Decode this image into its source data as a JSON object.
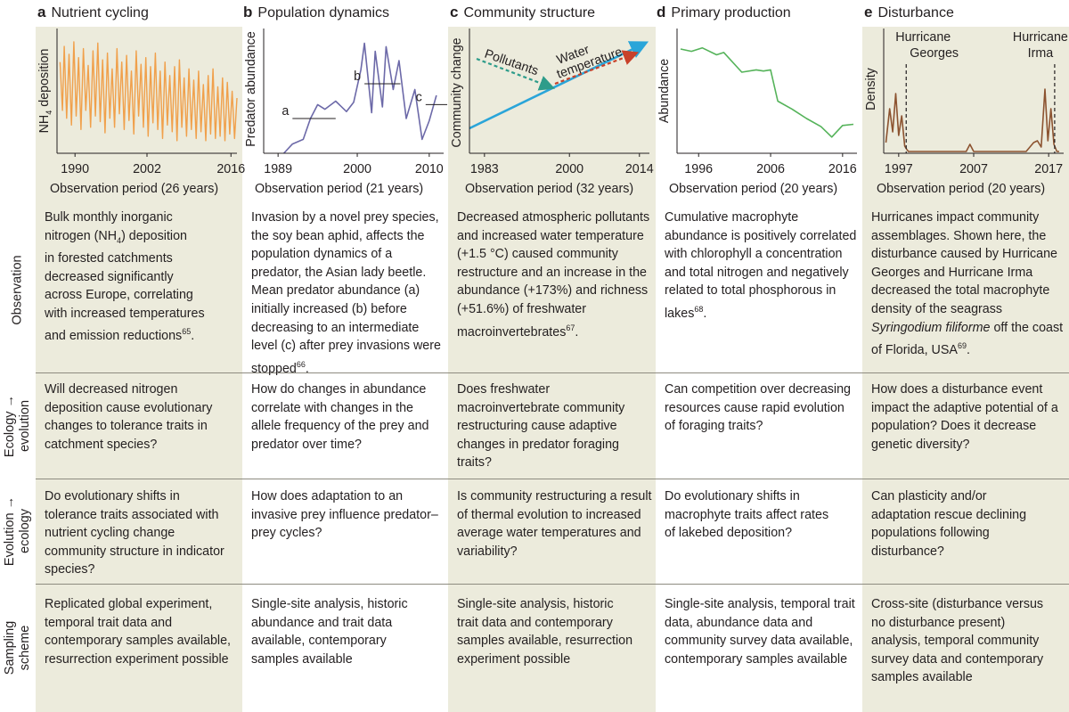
{
  "colors": {
    "shade": "#ecebdc",
    "orange": "#f0a04b",
    "purple": "#6c69a8",
    "blue": "#2aa5d9",
    "teal": "#2e9c8a",
    "red": "#c8412a",
    "green": "#55b35a",
    "brown": "#8c5330"
  },
  "panels": [
    {
      "letter": "a",
      "title": "Nutrient cycling",
      "xlabel": "Observation period (26 years)",
      "observation": [
        "Bulk monthly inorganic",
        "nitrogen (NH",
        "4",
        ") deposition",
        "in forested catchments",
        "decreased significantly",
        "across Europe, correlating",
        "with increased temperatures",
        "and emission reductions",
        "65",
        "."
      ],
      "eco_evo": "Will decreased nitrogen deposition cause evolutionary changes to tolerance traits in catchment species?",
      "evo_eco": "Do evolutionary shifts in tolerance traits associated with nutrient cycling change community structure in indicator species?",
      "sampling": "Replicated global experiment, temporal trait data and contemporary samples available, resurrection experiment possible"
    },
    {
      "letter": "b",
      "title": "Population dynamics",
      "xlabel": "Observation period (21 years)",
      "observation": "Invasion by a novel prey species, the soy bean aphid, affects the population dynamics of a predator, the Asian lady beetle. Mean predator abundance (a) initially increased (b) before decreasing to an intermediate level (c) after prey invasions were stopped",
      "observation_ref": "66",
      "eco_evo": "How do changes in abundance correlate with changes in the allele frequency of the prey and predator over time?",
      "evo_eco": "How does adaptation to an invasive prey influence predator–prey cycles?",
      "sampling": "Single-site analysis, historic abundance and trait data available, contemporary samples available"
    },
    {
      "letter": "c",
      "title": "Community structure",
      "xlabel": "Observation period (32 years)",
      "observation": "Decreased atmospheric pollutants and increased water temperature (+1.5 °C) caused community restructure and an increase in the abundance (+173%) and richness (+51.6%) of freshwater macroinvertebrates",
      "observation_ref": "67",
      "eco_evo": "Does freshwater macroinvertebrate community restructuring cause adaptive changes in predator foraging traits?",
      "evo_eco": "Is community restructuring a result of thermal evolution to increased average water temperatures and variability?",
      "sampling": "Single-site analysis, historic trait data and contemporary samples available, resurrection experiment possible"
    },
    {
      "letter": "d",
      "title": "Primary production",
      "xlabel": "Observation period (20 years)",
      "observation": "Cumulative macrophyte abundance is positively correlated with chlorophyll a concentration and total nitrogen and negatively related to total phosphorous in lakes",
      "observation_ref": "68",
      "eco_evo": "Can competition over decreasing resources cause rapid evolution of foraging traits?",
      "evo_eco": "Do evolutionary shifts in macrophyte traits affect rates of lakebed deposition?",
      "sampling": "Single-site analysis, temporal trait data, abundance data and community survey data available, contemporary samples available"
    },
    {
      "letter": "e",
      "title": "Disturbance",
      "xlabel": "Observation period (20 years)",
      "observation_pre": "Hurricanes impact community assemblages. Shown here, the disturbance caused by Hurricane Georges and Hurricane Irma decreased the total macrophyte density of the seagrass",
      "observation_species": "Syringodium filiforme",
      "observation_post": "off the coast of Florida, USA",
      "observation_ref": "69",
      "eco_evo": "How does a disturbance event impact the adaptive potential of a population? Does it decrease genetic diversity?",
      "evo_eco": "Can plasticity and/or adaptation rescue declining populations following disturbance?",
      "sampling": "Cross-site (disturbance versus no disturbance present) analysis, temporal community survey data and contemporary samples available"
    }
  ],
  "row_labels": {
    "observation": "Observation",
    "eco_evo_1": "Ecology →",
    "eco_evo_2": "evolution",
    "evo_eco_1": "Evolution →",
    "evo_eco_2": "ecology",
    "sampling_1": "Sampling",
    "sampling_2": "scheme"
  },
  "chart_data": [
    {
      "panel": "a",
      "type": "line",
      "ylabel_pre": "NH",
      "ylabel_sub": "4",
      "ylabel_post": " deposition",
      "xticks": [
        "1990",
        "2002",
        "2016"
      ],
      "xlim": [
        1987,
        2017
      ],
      "x": [
        1987.5,
        1987.9,
        1988.2,
        1988.6,
        1989.0,
        1989.4,
        1989.8,
        1990.2,
        1990.6,
        1991.0,
        1991.4,
        1991.8,
        1992.2,
        1992.6,
        1993.0,
        1993.4,
        1993.8,
        1994.2,
        1994.6,
        1995.0,
        1995.4,
        1995.8,
        1996.2,
        1996.6,
        1997.0,
        1997.4,
        1997.8,
        1998.2,
        1998.6,
        1999.0,
        1999.4,
        1999.8,
        2000.2,
        2000.6,
        2001.0,
        2001.4,
        2001.8,
        2002.2,
        2002.6,
        2003.0,
        2003.4,
        2003.8,
        2004.2,
        2004.6,
        2005.0,
        2005.4,
        2005.8,
        2006.2,
        2006.6,
        2007.0,
        2007.4,
        2007.8,
        2008.2,
        2008.6,
        2009.0,
        2009.4,
        2009.8,
        2010.2,
        2010.6,
        2011.0,
        2011.4,
        2011.8,
        2012.2,
        2012.6,
        2013.0,
        2013.4,
        2013.8,
        2014.2,
        2014.6,
        2015.0,
        2015.4,
        2015.8,
        2016.2,
        2016.6,
        2017.0
      ],
      "y": [
        0.78,
        0.35,
        0.92,
        0.28,
        0.85,
        0.22,
        0.96,
        0.3,
        0.82,
        0.18,
        0.9,
        0.35,
        0.75,
        0.2,
        0.88,
        0.3,
        0.95,
        0.25,
        0.8,
        0.15,
        0.86,
        0.28,
        0.72,
        0.2,
        0.9,
        0.32,
        0.78,
        0.18,
        0.84,
        0.26,
        0.7,
        0.14,
        0.88,
        0.3,
        0.76,
        0.2,
        0.82,
        0.12,
        0.74,
        0.24,
        0.86,
        0.18,
        0.7,
        0.1,
        0.78,
        0.22,
        0.66,
        0.16,
        0.74,
        0.08,
        0.8,
        0.2,
        0.64,
        0.12,
        0.72,
        0.18,
        0.62,
        0.1,
        0.7,
        0.16,
        0.58,
        0.08,
        0.66,
        0.14,
        0.72,
        0.1,
        0.56,
        0.12,
        0.64,
        0.08,
        0.6,
        0.14,
        0.52,
        0.1,
        0.46
      ],
      "ylim": [
        0,
        1
      ]
    },
    {
      "panel": "b",
      "type": "line",
      "ylabel": "Predator abundance",
      "xticks": [
        "1989",
        "2000",
        "2010"
      ],
      "xlim": [
        1987,
        2012
      ],
      "x": [
        1989.8,
        1991,
        1992.5,
        1993.5,
        1994.5,
        1995.5,
        1997,
        1998.5,
        1999.5,
        2000.5,
        2001,
        2002,
        2002.5,
        2003.5,
        2004,
        2005,
        2005.8,
        2006.8,
        2008,
        2009,
        2010,
        2011
      ],
      "y": [
        0.0,
        0.08,
        0.12,
        0.3,
        0.42,
        0.38,
        0.45,
        0.36,
        0.44,
        0.72,
        0.95,
        0.35,
        0.88,
        0.4,
        0.92,
        0.55,
        0.8,
        0.3,
        0.55,
        0.12,
        0.28,
        0.5
      ],
      "ylim": [
        0,
        1
      ],
      "annotations": [
        {
          "label": "a",
          "x1": 1991,
          "x2": 1997,
          "y": 0.3
        },
        {
          "label": "b",
          "x1": 2001,
          "x2": 2006,
          "y": 0.6
        },
        {
          "label": "c",
          "x1": 2009.5,
          "x2": 2012.5,
          "y": 0.42
        }
      ]
    },
    {
      "panel": "c",
      "type": "schematic",
      "ylabel": "Community change",
      "xticks": [
        "1983",
        "2000",
        "2014"
      ],
      "xlim": [
        1980,
        2016
      ],
      "trend": {
        "x": [
          1980,
          2015
        ],
        "y": [
          0.2,
          0.88
        ]
      },
      "arrows": [
        {
          "label": "Pollutants",
          "color": "teal"
        },
        {
          "label_1": "Water",
          "label_2": "temperature",
          "color": "red"
        }
      ]
    },
    {
      "panel": "d",
      "type": "line",
      "ylabel": "Abundance",
      "xticks": [
        "1996",
        "2006",
        "2016"
      ],
      "xlim": [
        1993,
        2018
      ],
      "x": [
        1993.5,
        1995,
        1996.5,
        1998.5,
        1999.5,
        2002,
        2004,
        2005,
        2006,
        2007,
        2009,
        2011,
        2013,
        2014.5,
        2016,
        2017.5
      ],
      "y": [
        0.9,
        0.88,
        0.91,
        0.85,
        0.87,
        0.7,
        0.72,
        0.71,
        0.72,
        0.45,
        0.38,
        0.3,
        0.23,
        0.14,
        0.24,
        0.25
      ],
      "ylim": [
        0,
        1
      ]
    },
    {
      "panel": "e",
      "type": "line",
      "ylabel": "Density",
      "xticks": [
        "1997",
        "2007",
        "2017"
      ],
      "xlim": [
        1995,
        2019
      ],
      "x": [
        1995.3,
        1995.8,
        1996.2,
        1996.6,
        1997.0,
        1997.4,
        1997.8,
        1998.1,
        1998.3,
        1999,
        2003,
        2006,
        2006.5,
        2007,
        2011,
        2014,
        2015,
        2015.5,
        2016,
        2016.5,
        2016.9,
        2017.3,
        2017.7,
        2018.1,
        2018.4
      ],
      "y": [
        0.1,
        0.48,
        0.22,
        0.65,
        0.18,
        0.4,
        0.06,
        0.02,
        0.0,
        0.0,
        0.0,
        0.0,
        0.08,
        0.0,
        0.0,
        0.0,
        0.1,
        0.12,
        0.05,
        0.7,
        0.12,
        0.48,
        0.08,
        0.0,
        0.0
      ],
      "ylim": [
        0,
        1
      ],
      "events": [
        {
          "label_1": "Hurricane",
          "label_2": "Georges",
          "x": 1998.0
        },
        {
          "label_1": "Hurricane",
          "label_2": "Irma",
          "x": 2017.8
        }
      ]
    }
  ]
}
